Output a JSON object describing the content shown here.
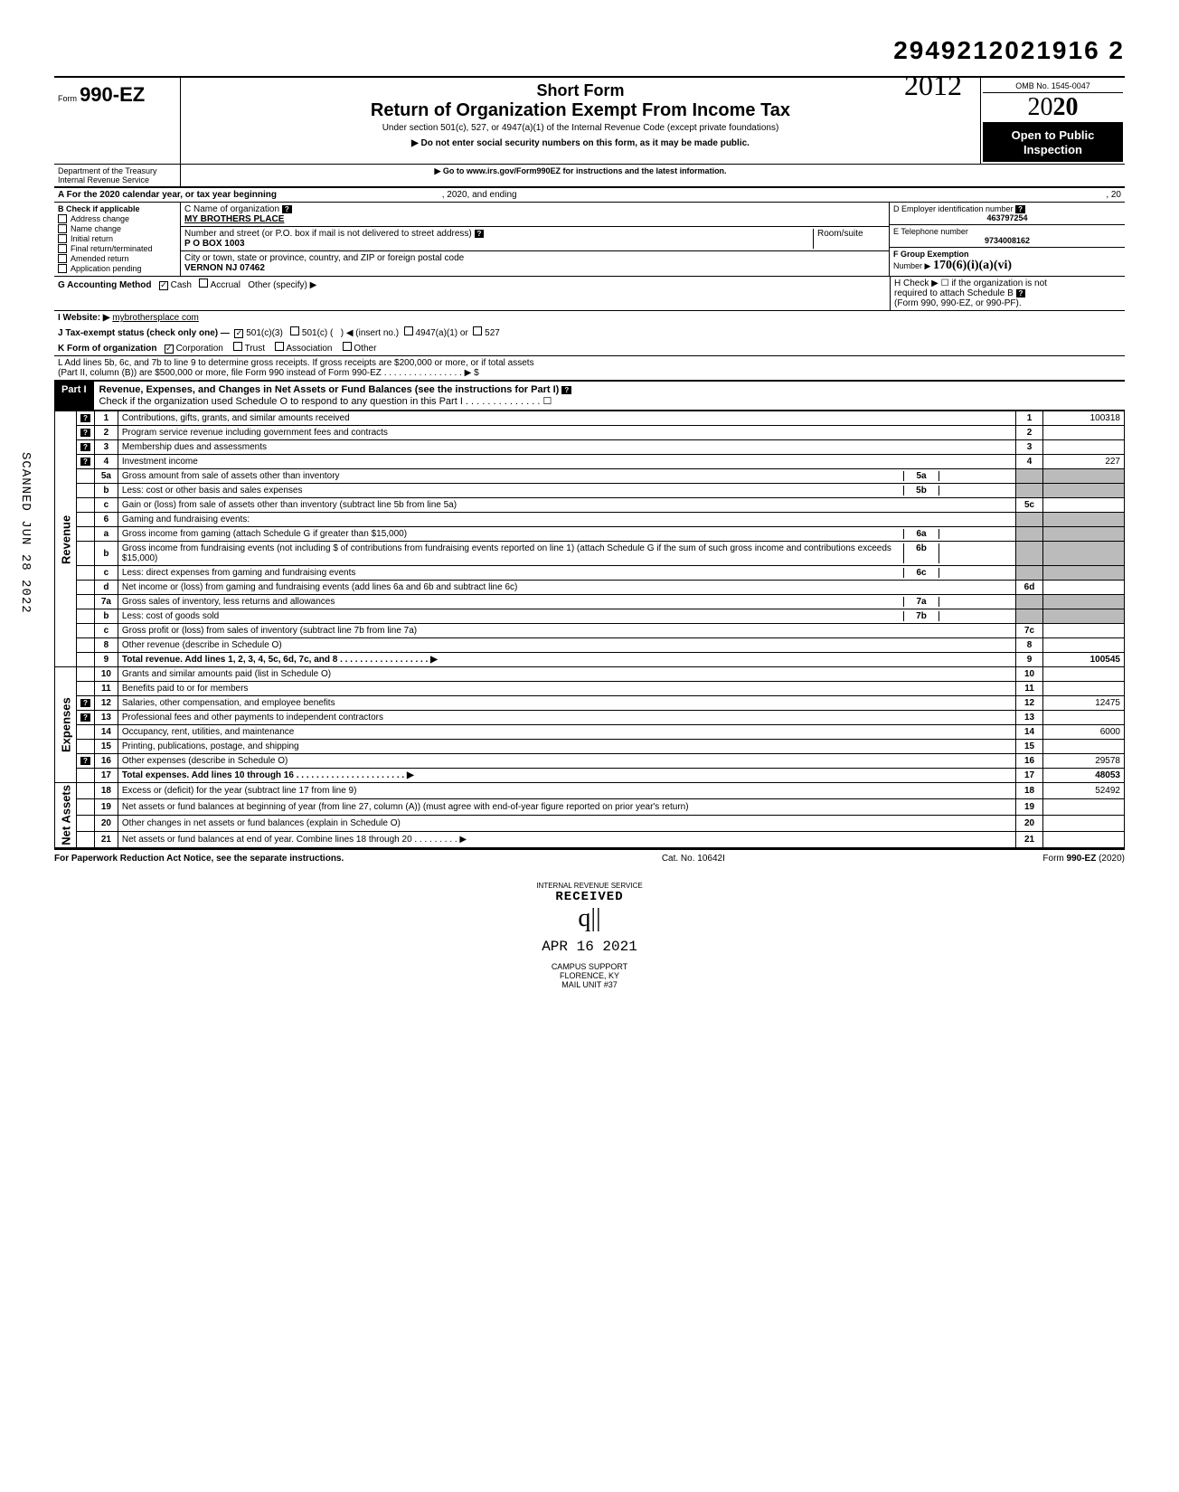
{
  "doc_id": "2949212021916  2",
  "handwritten_year": "2012",
  "header": {
    "form_prefix": "Form",
    "form_number": "990-EZ",
    "short_form": "Short Form",
    "title": "Return of Organization Exempt From Income Tax",
    "subtitle": "Under section 501(c), 527, or 4947(a)(1) of the Internal Revenue Code (except private foundations)",
    "warn": "▶ Do not enter social security numbers on this form, as it may be made public.",
    "goto": "▶ Go to www.irs.gov/Form990EZ for instructions and the latest information.",
    "omb": "OMB No. 1545-0047",
    "year_prefix": "20",
    "year_bold": "20",
    "open1": "Open to Public",
    "open2": "Inspection",
    "dept1": "Department of the Treasury",
    "dept2": "Internal Revenue Service"
  },
  "line_a": {
    "text_left": "A  For the 2020 calendar year, or tax year beginning",
    "mid": ", 2020, and ending",
    "end": ", 20"
  },
  "col_b": {
    "title": "B  Check if applicable",
    "items": [
      "Address change",
      "Name change",
      "Initial return",
      "Final return/terminated",
      "Amended return",
      "Application pending"
    ]
  },
  "col_c": {
    "name_label": "C  Name of organization",
    "name": "MY BROTHERS PLACE",
    "addr_label": "Number and street (or P.O. box if mail is not delivered to street address)",
    "room_label": "Room/suite",
    "addr": "P O BOX 1003",
    "city_label": "City or town, state or province, country, and ZIP or foreign postal code",
    "city": "VERNON    NJ  07462"
  },
  "col_d": {
    "ein_label": "D Employer identification number",
    "ein": "463797254",
    "tel_label": "E Telephone number",
    "tel": "9734008162",
    "f_label": "F Group Exemption",
    "f_num_label": "Number  ▶",
    "f_num_hand": "170(6)(i)(a)(vi)"
  },
  "row_g": {
    "label": "G  Accounting Method",
    "cash": "Cash",
    "cash_checked": true,
    "accrual": "Accrual",
    "other": "Other (specify) ▶",
    "h_label": "H  Check ▶ ☐ if the organization is not",
    "h_label2": "required to attach Schedule B",
    "h_label3": "(Form 990, 990-EZ, or 990-PF)."
  },
  "row_i": {
    "label": "I  Website: ▶",
    "value": "mybrothersplace com"
  },
  "row_j": {
    "label": "J  Tax-exempt status (check only one) —",
    "c3": "501(c)(3)",
    "c3_checked": true,
    "c": "501(c) (",
    "insert": ") ◀ (insert no.)",
    "a1": "4947(a)(1) or",
    "s527": "527"
  },
  "row_k": {
    "label": "K  Form of organization",
    "corp": "Corporation",
    "corp_checked": true,
    "trust": "Trust",
    "assoc": "Association",
    "other": "Other"
  },
  "row_l": {
    "l1": "L  Add lines 5b, 6c, and 7b to line 9 to determine gross receipts. If gross receipts are $200,000 or more, or if total assets",
    "l2": "(Part II, column (B)) are $500,000 or more, file Form 990 instead of Form 990-EZ . . . . . . . . . . . . . . . .  ▶  $"
  },
  "part1": {
    "label": "Part I",
    "title": "Revenue, Expenses, and Changes in Net Assets or Fund Balances (see the instructions for Part I)",
    "check_line": "Check if the organization used Schedule O to respond to any question in this Part I . . . . . . . . . . . . . . ☐"
  },
  "sections": {
    "revenue": "Revenue",
    "expenses": "Expenses",
    "netassets": "Net Assets"
  },
  "lines": [
    {
      "n": "1",
      "d": "Contributions, gifts, grants, and similar amounts received",
      "box": "1",
      "amt": "100318",
      "help": true
    },
    {
      "n": "2",
      "d": "Program service revenue including government fees and contracts",
      "box": "2",
      "amt": "",
      "help": true
    },
    {
      "n": "3",
      "d": "Membership dues and assessments",
      "box": "3",
      "amt": "",
      "help": true
    },
    {
      "n": "4",
      "d": "Investment income",
      "box": "4",
      "amt": "227",
      "help": true
    },
    {
      "n": "5a",
      "d": "Gross amount from sale of assets other than inventory",
      "inner": "5a",
      "shadebox": true
    },
    {
      "n": "b",
      "d": "Less: cost or other basis and sales expenses",
      "inner": "5b",
      "shadebox": true
    },
    {
      "n": "c",
      "d": "Gain or (loss) from sale of assets other than inventory (subtract line 5b from line 5a)",
      "box": "5c",
      "amt": ""
    },
    {
      "n": "6",
      "d": "Gaming and fundraising events:",
      "shadebox": true,
      "noboxrow": true
    },
    {
      "n": "a",
      "d": "Gross income from gaming (attach Schedule G if greater than $15,000)",
      "inner": "6a",
      "shadebox": true
    },
    {
      "n": "b",
      "d": "Gross income from fundraising events (not including  $                           of contributions from fundraising events reported on line 1) (attach Schedule G if the sum of such gross income and contributions exceeds $15,000)",
      "inner": "6b",
      "shadebox": true
    },
    {
      "n": "c",
      "d": "Less: direct expenses from gaming and fundraising events",
      "inner": "6c",
      "shadebox": true
    },
    {
      "n": "d",
      "d": "Net income or (loss) from gaming and fundraising events (add lines 6a and 6b and subtract line 6c)",
      "box": "6d",
      "amt": ""
    },
    {
      "n": "7a",
      "d": "Gross sales of inventory, less returns and allowances",
      "inner": "7a",
      "shadebox": true
    },
    {
      "n": "b",
      "d": "Less: cost of goods sold",
      "inner": "7b",
      "shadebox": true
    },
    {
      "n": "c",
      "d": "Gross profit or (loss) from sales of inventory (subtract line 7b from line 7a)",
      "box": "7c",
      "amt": ""
    },
    {
      "n": "8",
      "d": "Other revenue (describe in Schedule O)",
      "box": "8",
      "amt": ""
    },
    {
      "n": "9",
      "d": "Total revenue. Add lines 1, 2, 3, 4, 5c, 6d, 7c, and 8  . . . . . . . . . . . . . . . . . . ▶",
      "box": "9",
      "amt": "100545",
      "bold": true
    }
  ],
  "exp_lines": [
    {
      "n": "10",
      "d": "Grants and similar amounts paid (list in Schedule O)",
      "box": "10",
      "amt": ""
    },
    {
      "n": "11",
      "d": "Benefits paid to or for members",
      "box": "11",
      "amt": ""
    },
    {
      "n": "12",
      "d": "Salaries, other compensation, and employee benefits",
      "box": "12",
      "amt": "12475",
      "help": true
    },
    {
      "n": "13",
      "d": "Professional fees and other payments to independent contractors",
      "box": "13",
      "amt": "",
      "help": true
    },
    {
      "n": "14",
      "d": "Occupancy, rent, utilities, and maintenance",
      "box": "14",
      "amt": "6000"
    },
    {
      "n": "15",
      "d": "Printing, publications, postage, and shipping",
      "box": "15",
      "amt": ""
    },
    {
      "n": "16",
      "d": "Other expenses (describe in Schedule O)",
      "box": "16",
      "amt": "29578",
      "help": true
    },
    {
      "n": "17",
      "d": "Total expenses. Add lines 10 through 16  . . . . . . . . . . . . . . . . . . . . . . ▶",
      "box": "17",
      "amt": "48053",
      "bold": true
    }
  ],
  "na_lines": [
    {
      "n": "18",
      "d": "Excess or (deficit) for the year (subtract line 17 from line 9)",
      "box": "18",
      "amt": "52492"
    },
    {
      "n": "19",
      "d": "Net assets or fund balances at beginning of year (from line 27, column (A)) (must agree with end-of-year figure reported on prior year's return)",
      "box": "19",
      "amt": "",
      "shadetop": true
    },
    {
      "n": "20",
      "d": "Other changes in net assets or fund balances (explain in Schedule O)",
      "box": "20",
      "amt": ""
    },
    {
      "n": "21",
      "d": "Net assets or fund balances at end of year. Combine lines 18 through 20  . . . . . . . . . ▶",
      "box": "21",
      "amt": ""
    }
  ],
  "footer": {
    "left": "For Paperwork Reduction Act Notice, see the separate instructions.",
    "mid": "Cat. No. 10642I",
    "right": "Form 990-EZ (2020)"
  },
  "stamps": {
    "irs1": "INTERNAL REVENUE SERVICE",
    "received": "RECEIVED",
    "date": "APR 16 2021",
    "campus1": "CAMPUS SUPPORT",
    "campus2": "FLORENCE, KY",
    "campus3": "MAIL UNIT #37",
    "scanned": "SCANNED JUN 28 2022",
    "hand_q": "q||"
  }
}
